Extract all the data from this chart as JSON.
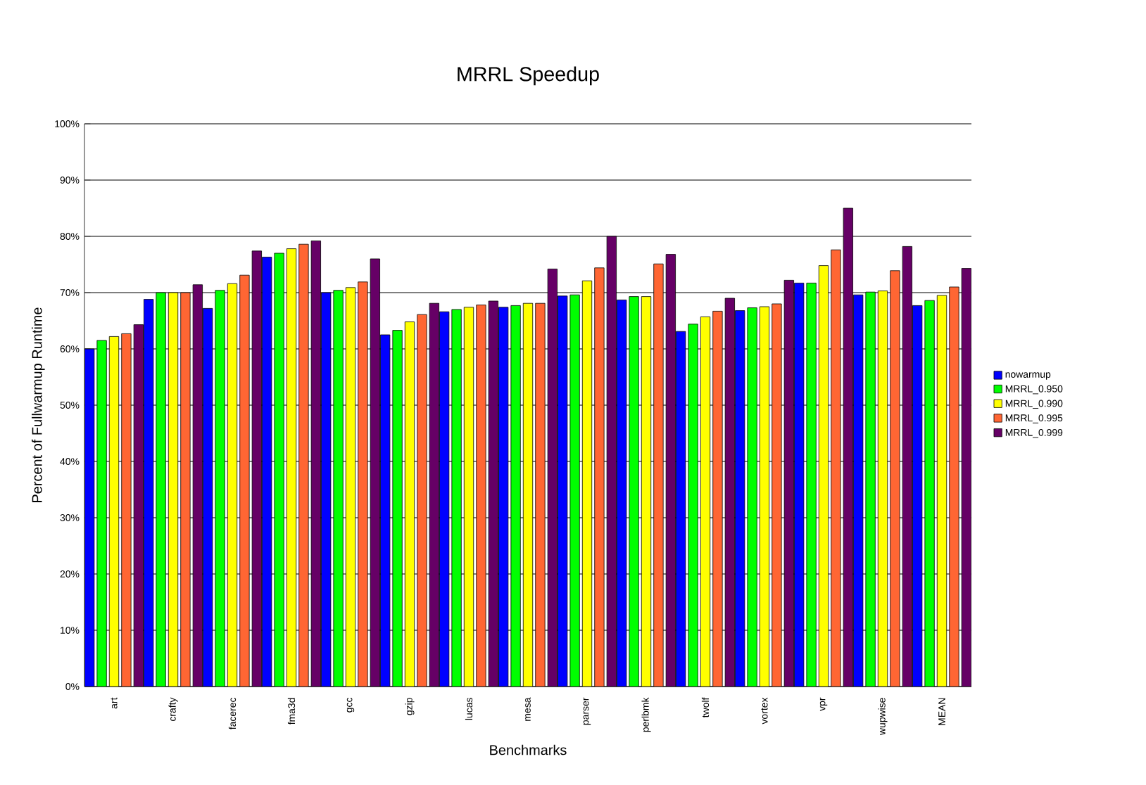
{
  "chart_data": {
    "type": "bar",
    "title": "MRRL Speedup",
    "xlabel": "Benchmarks",
    "ylabel": "Percent of Fullwarmup Runtime",
    "categories": [
      "art",
      "crafty",
      "facerec",
      "fma3d",
      "gcc",
      "gzip",
      "lucas",
      "mesa",
      "parser",
      "perlbmk",
      "twolf",
      "vortex",
      "vpr",
      "wupwise",
      "MEAN"
    ],
    "series": [
      {
        "name": "nowarmup",
        "color": "#0000ff",
        "values": [
          60,
          68.8,
          67.2,
          76.3,
          70,
          62.5,
          66.6,
          67.4,
          69.4,
          68.7,
          63.1,
          66.8,
          71.7,
          69.6,
          67.7
        ]
      },
      {
        "name": "MRRL_0.950",
        "color": "#00ff00",
        "values": [
          61.5,
          70,
          70.4,
          77,
          70.4,
          63.3,
          67,
          67.7,
          69.6,
          69.3,
          64.4,
          67.3,
          71.7,
          70.1,
          68.6
        ]
      },
      {
        "name": "MRRL_0.990",
        "color": "#ffff00",
        "values": [
          62.2,
          70,
          71.6,
          77.8,
          70.9,
          64.8,
          67.4,
          68.1,
          72.1,
          69.3,
          65.7,
          67.5,
          74.8,
          70.3,
          69.5
        ]
      },
      {
        "name": "MRRL_0.995",
        "color": "#ff6633",
        "values": [
          62.7,
          70,
          73.1,
          78.6,
          71.9,
          66.1,
          67.8,
          68.1,
          74.4,
          75.1,
          66.7,
          68,
          77.6,
          73.9,
          71
        ]
      },
      {
        "name": "MRRL_0.999",
        "color": "#660066",
        "values": [
          64.3,
          71.4,
          77.4,
          79.2,
          76,
          68.1,
          68.5,
          74.2,
          80,
          76.8,
          69,
          72.2,
          85,
          78.2,
          74.3
        ]
      }
    ],
    "ylim": [
      0,
      100
    ],
    "yticks": [
      {
        "value": 0,
        "label": "0%"
      },
      {
        "value": 10,
        "label": "10%"
      },
      {
        "value": 20,
        "label": "20%"
      },
      {
        "value": 30,
        "label": "30%"
      },
      {
        "value": 40,
        "label": "40%"
      },
      {
        "value": 50,
        "label": "50%"
      },
      {
        "value": 60,
        "label": "60%"
      },
      {
        "value": 70,
        "label": "70%"
      },
      {
        "value": 80,
        "label": "80%"
      },
      {
        "value": 90,
        "label": "90%"
      },
      {
        "value": 100,
        "label": "100%"
      }
    ],
    "grid": "y",
    "legend": "right"
  }
}
